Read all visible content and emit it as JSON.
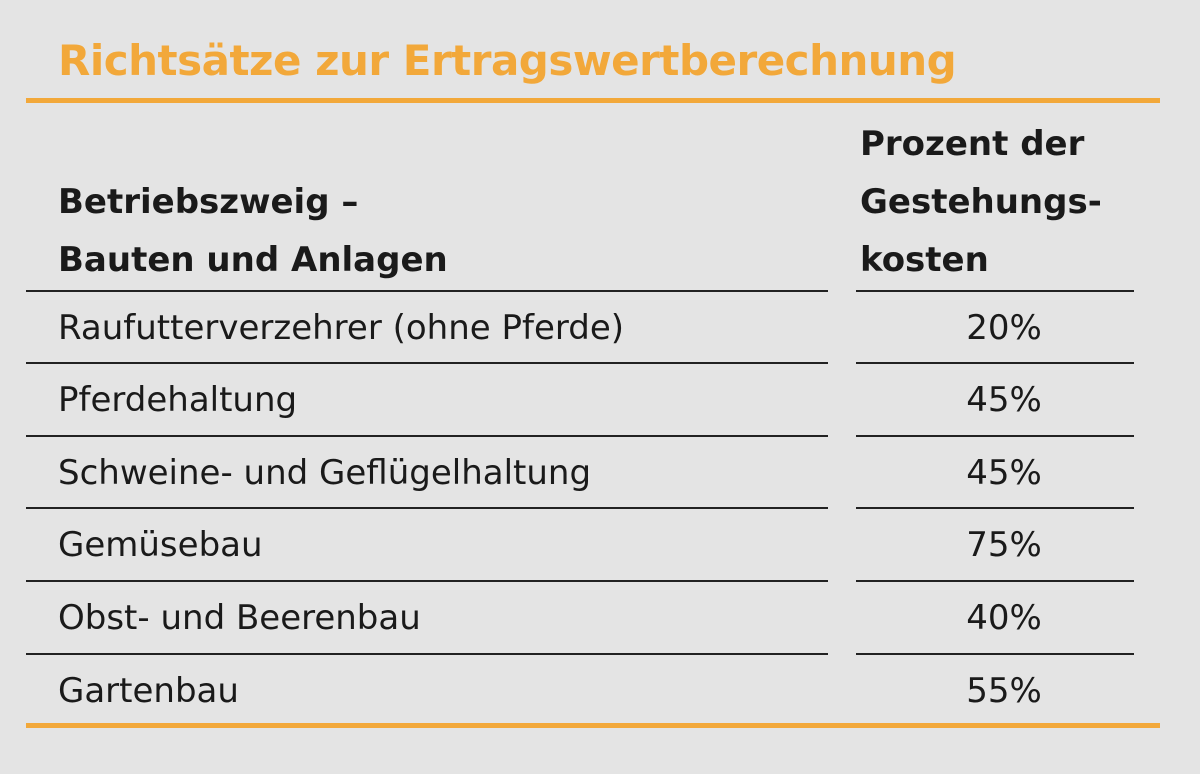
{
  "title": "Richtsätze zur Ertragswertberechnung",
  "header": {
    "left": [
      "Betriebszweig –",
      "Bauten und Anlagen"
    ],
    "right": [
      "Prozent der",
      "Gestehungs-",
      "kosten"
    ]
  },
  "rows": [
    {
      "name": "Raufutterverzehrer (ohne Pferde)",
      "value": "20%"
    },
    {
      "name": "Pferdehaltung",
      "value": "45%"
    },
    {
      "name": "Schweine- und Geflügelhaltung",
      "value": "45%"
    },
    {
      "name": "Gemüsebau",
      "value": "75%"
    },
    {
      "name": "Obst- und Beerenbau",
      "value": "40%"
    },
    {
      "name": "Gartenbau",
      "value": "55%"
    }
  ],
  "colors": {
    "accent": "#f2a83a",
    "background": "#e4e4e4",
    "text": "#1a1a1a"
  }
}
